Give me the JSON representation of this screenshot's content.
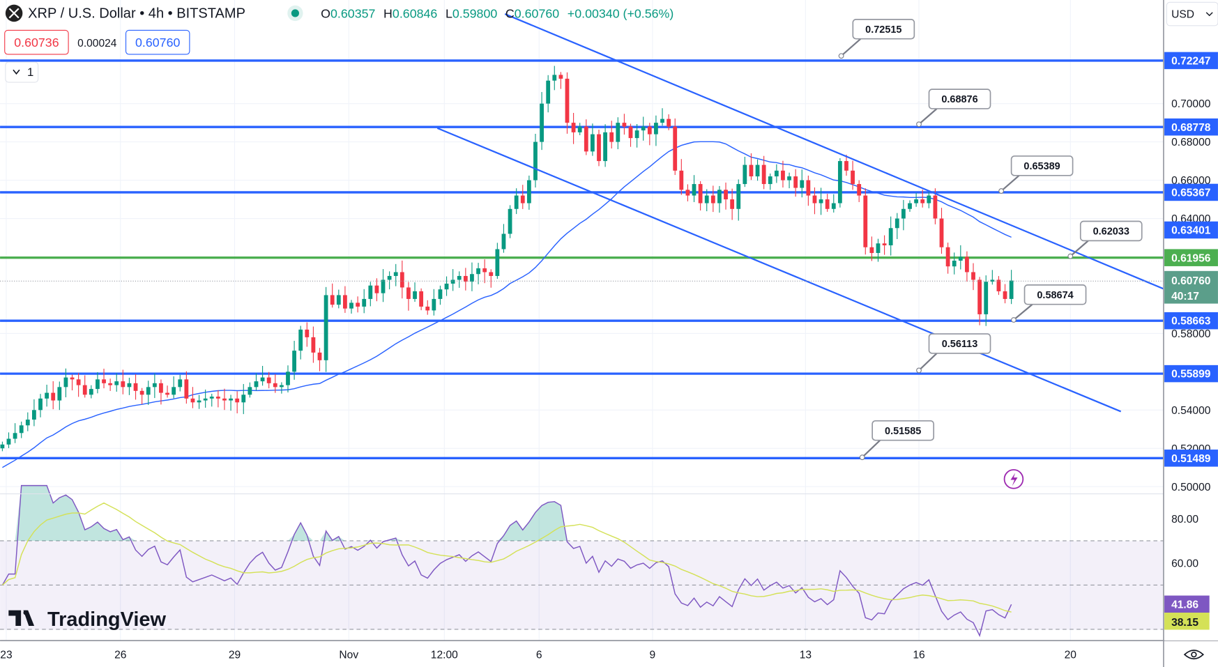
{
  "header": {
    "symbol": "XRP / U.S. Dollar • 4h • BITSTAMP",
    "ohlc": [
      {
        "k": "O",
        "v": "0.60357"
      },
      {
        "k": "H",
        "v": "0.60846"
      },
      {
        "k": "L",
        "v": "0.59800"
      },
      {
        "k": "C",
        "v": "0.60760"
      }
    ],
    "change": "+0.00340 (+0.56%)",
    "bid": "0.60736",
    "spread": "0.00024",
    "ask": "0.60760",
    "indicators_toggle": "1",
    "currency": "USD"
  },
  "colors": {
    "up": "#089981",
    "down": "#f23645",
    "level": "#2962ff",
    "support": "#4caf50",
    "ma": "#2962ff",
    "rsi": "#7e57c2",
    "rsi_ma": "#d4e157"
  },
  "chart_data": {
    "type": "candlestick",
    "title": "XRP / U.S. Dollar • 4h • BITSTAMP",
    "ylim": [
      0.495,
      0.735
    ],
    "x_tick_labels": [
      "23",
      "26",
      "29",
      "Nov",
      "12:00",
      "6",
      "9",
      "13",
      "16",
      "20"
    ],
    "y_tick_labels": [
      "0.70000",
      "0.68000",
      "0.66000",
      "0.64000",
      "0.58000",
      "0.54000",
      "0.52000",
      "0.50000"
    ],
    "closes": [
      0.522,
      0.525,
      0.528,
      0.532,
      0.535,
      0.54,
      0.546,
      0.549,
      0.545,
      0.552,
      0.557,
      0.556,
      0.553,
      0.548,
      0.551,
      0.556,
      0.554,
      0.553,
      0.555,
      0.552,
      0.554,
      0.55,
      0.548,
      0.552,
      0.554,
      0.549,
      0.548,
      0.552,
      0.556,
      0.546,
      0.544,
      0.545,
      0.546,
      0.547,
      0.546,
      0.545,
      0.546,
      0.544,
      0.548,
      0.552,
      0.555,
      0.557,
      0.554,
      0.552,
      0.553,
      0.56,
      0.571,
      0.582,
      0.578,
      0.57,
      0.566,
      0.6,
      0.595,
      0.6,
      0.593,
      0.596,
      0.594,
      0.598,
      0.605,
      0.601,
      0.608,
      0.61,
      0.612,
      0.604,
      0.598,
      0.602,
      0.594,
      0.592,
      0.598,
      0.603,
      0.606,
      0.608,
      0.61,
      0.607,
      0.611,
      0.614,
      0.612,
      0.61,
      0.624,
      0.632,
      0.645,
      0.652,
      0.648,
      0.66,
      0.68,
      0.7,
      0.712,
      0.715,
      0.713,
      0.69,
      0.685,
      0.688,
      0.675,
      0.684,
      0.67,
      0.685,
      0.68,
      0.69,
      0.688,
      0.682,
      0.686,
      0.688,
      0.684,
      0.69,
      0.692,
      0.688,
      0.665,
      0.655,
      0.652,
      0.658,
      0.648,
      0.652,
      0.648,
      0.655,
      0.65,
      0.645,
      0.658,
      0.668,
      0.662,
      0.668,
      0.658,
      0.662,
      0.665,
      0.66,
      0.662,
      0.656,
      0.66,
      0.652,
      0.648,
      0.65,
      0.645,
      0.648,
      0.67,
      0.665,
      0.658,
      0.652,
      0.625,
      0.622,
      0.627,
      0.626,
      0.635,
      0.64,
      0.645,
      0.648,
      0.65,
      0.648,
      0.652,
      0.64,
      0.625,
      0.615,
      0.618,
      0.62,
      0.612,
      0.608,
      0.59,
      0.607,
      0.608,
      0.602,
      0.598,
      0.6076
    ],
    "levels": [
      {
        "value": 0.72247,
        "label": "0.72247",
        "color": "#2962ff"
      },
      {
        "value": 0.68778,
        "label": "0.68778",
        "color": "#2962ff"
      },
      {
        "value": 0.65367,
        "label": "0.65367",
        "color": "#2962ff"
      },
      {
        "value": 0.61956,
        "label": "0.61956",
        "color": "#4caf50"
      },
      {
        "value": 0.58663,
        "label": "0.58663",
        "color": "#2962ff"
      },
      {
        "value": 0.55899,
        "label": "0.55899",
        "color": "#2962ff"
      },
      {
        "value": 0.51489,
        "label": "0.51489",
        "color": "#2962ff"
      }
    ],
    "trendline_axis_label": {
      "value": 0.63401,
      "label": "0.63401"
    },
    "callouts": [
      {
        "label": "0.72515",
        "value": 0.72515
      },
      {
        "label": "0.68876",
        "value": 0.68876
      },
      {
        "label": "0.65389",
        "value": 0.65389
      },
      {
        "label": "0.62033",
        "value": 0.62033
      },
      {
        "label": "0.58674",
        "value": 0.58674
      },
      {
        "label": "0.56113",
        "value": 0.56113
      },
      {
        "label": "0.51585",
        "value": 0.51585
      }
    ],
    "last_price": "0.60760",
    "countdown": "40:17",
    "rsi": {
      "ticks": [
        "80.00",
        "60.00"
      ],
      "value": "41.86",
      "ma_value": "38.15",
      "upper": 70,
      "middle": 50,
      "lower": 30
    }
  },
  "branding": {
    "logo": "TradingView"
  }
}
